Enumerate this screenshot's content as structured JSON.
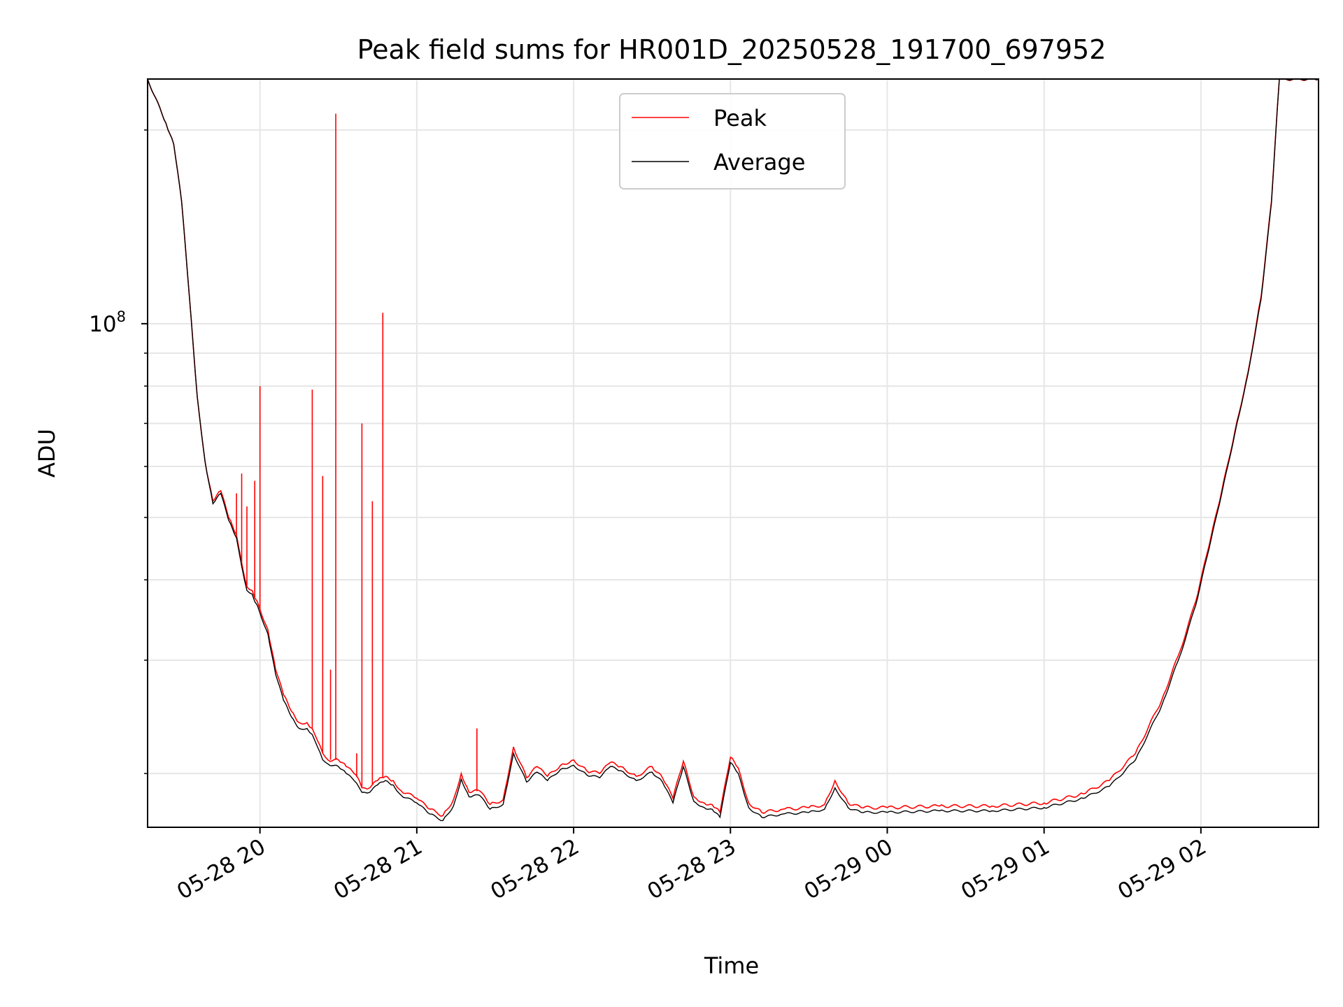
{
  "chart_data": {
    "type": "line",
    "title": "Peak field sums for HR001D_20250528_191700_697952",
    "xlabel": "Time",
    "ylabel": "ADU",
    "y_scale": "log",
    "grid": true,
    "legend_position": "top-center",
    "xlim": [
      "05-28 19:17",
      "05-29 02:45"
    ],
    "ylim": [
      16500000,
      240000000
    ],
    "x_ticks": [
      "05-28 20",
      "05-28 21",
      "05-28 22",
      "05-28 23",
      "05-29 00",
      "05-29 01",
      "05-29 02"
    ],
    "y_tick_label": {
      "base": "10",
      "exponent": "8",
      "value": 100000000
    },
    "series": [
      {
        "name": "Peak",
        "color": "#ff0000",
        "x": [
          "05-28 19:17",
          "05-28 19:24",
          "05-28 19:27",
          "05-28 19:30",
          "05-28 19:33",
          "05-28 19:36",
          "05-28 19:39",
          "05-28 19:42",
          "05-28 19:45",
          "05-28 19:48",
          "05-28 19:51",
          "05-28 19:53",
          "05-28 19:55",
          "05-28 19:57",
          "05-28 19:58",
          "05-28 19:59",
          "05-28 20:00",
          "05-28 20:03",
          "05-28 20:06",
          "05-28 20:09",
          "05-28 20:12",
          "05-28 20:15",
          "05-28 20:18",
          "05-28 20:20",
          "05-28 20:21",
          "05-28 20:22",
          "05-28 20:24",
          "05-28 20:26",
          "05-28 20:30",
          "05-28 20:33",
          "05-28 20:36",
          "05-28 20:38",
          "05-28 20:39",
          "05-28 20:40",
          "05-28 20:42",
          "05-28 20:45",
          "05-28 20:48",
          "05-28 20:51",
          "05-28 20:54",
          "05-28 21:00",
          "05-28 21:05",
          "05-28 21:10",
          "05-28 21:14",
          "05-28 21:17",
          "05-28 21:20",
          "05-28 21:24",
          "05-28 21:28",
          "05-28 21:33",
          "05-28 21:37",
          "05-28 21:42",
          "05-28 21:46",
          "05-28 21:50",
          "05-28 21:55",
          "05-28 22:00",
          "05-28 22:05",
          "05-28 22:10",
          "05-28 22:14",
          "05-28 22:18",
          "05-28 22:24",
          "05-28 22:30",
          "05-28 22:34",
          "05-28 22:38",
          "05-28 22:42",
          "05-28 22:46",
          "05-28 22:50",
          "05-28 22:53",
          "05-28 22:56",
          "05-28 23:00",
          "05-28 23:03",
          "05-28 23:07",
          "05-28 23:12",
          "05-28 23:20",
          "05-28 23:30",
          "05-28 23:36",
          "05-28 23:40",
          "05-28 23:45",
          "05-28 23:50",
          "05-29 00:00",
          "05-29 00:20",
          "05-29 00:40",
          "05-29 01:00",
          "05-29 01:15",
          "05-29 01:25",
          "05-29 01:35",
          "05-29 01:45",
          "05-29 01:52",
          "05-29 01:58",
          "05-29 02:03",
          "05-29 02:08",
          "05-29 02:13",
          "05-29 02:18",
          "05-29 02:23",
          "05-29 02:27",
          "05-29 02:30",
          "05-29 02:45"
        ],
        "y": [
          240000000,
          205000000,
          190000000,
          155000000,
          110000000,
          77000000,
          61000000,
          53000000,
          55000000,
          50000000,
          47000000,
          42500000,
          39000000,
          38500000,
          37500000,
          37000000,
          36000000,
          33500000,
          29000000,
          26500000,
          25000000,
          24000000,
          24000000,
          23500000,
          23000000,
          22500000,
          21500000,
          21000000,
          21000000,
          20500000,
          20000000,
          19500000,
          19000000,
          19000000,
          19000000,
          19500000,
          19800000,
          19500000,
          18800000,
          18300000,
          17600000,
          17200000,
          18200000,
          20000000,
          18700000,
          18800000,
          17900000,
          18200000,
          22000000,
          19700000,
          20500000,
          19800000,
          20600000,
          21000000,
          20200000,
          20000000,
          20800000,
          20500000,
          19800000,
          20500000,
          19700000,
          18300000,
          20900000,
          18400000,
          18000000,
          17900000,
          17400000,
          21200000,
          20400000,
          18000000,
          17400000,
          17600000,
          17700000,
          17900000,
          19500000,
          18000000,
          17700000,
          17700000,
          17800000,
          17800000,
          18000000,
          18600000,
          19500000,
          21500000,
          26000000,
          31000000,
          37000000,
          45000000,
          55000000,
          68000000,
          84000000,
          110000000,
          155000000,
          240000000,
          240000000
        ]
      },
      {
        "name": "Average",
        "color": "#000000",
        "x": [
          "05-28 19:17",
          "05-28 19:24",
          "05-28 19:27",
          "05-28 19:30",
          "05-28 19:33",
          "05-28 19:36",
          "05-28 19:39",
          "05-28 19:42",
          "05-28 19:45",
          "05-28 19:48",
          "05-28 19:51",
          "05-28 19:53",
          "05-28 19:55",
          "05-28 19:57",
          "05-28 19:58",
          "05-28 19:59",
          "05-28 20:00",
          "05-28 20:03",
          "05-28 20:06",
          "05-28 20:09",
          "05-28 20:12",
          "05-28 20:15",
          "05-28 20:18",
          "05-28 20:20",
          "05-28 20:21",
          "05-28 20:22",
          "05-28 20:24",
          "05-28 20:26",
          "05-28 20:30",
          "05-28 20:33",
          "05-28 20:36",
          "05-28 20:38",
          "05-28 20:39",
          "05-28 20:40",
          "05-28 20:42",
          "05-28 20:45",
          "05-28 20:48",
          "05-28 20:51",
          "05-28 20:54",
          "05-28 21:00",
          "05-28 21:05",
          "05-28 21:10",
          "05-28 21:14",
          "05-28 21:17",
          "05-28 21:20",
          "05-28 21:24",
          "05-28 21:28",
          "05-28 21:33",
          "05-28 21:37",
          "05-28 21:42",
          "05-28 21:46",
          "05-28 21:50",
          "05-28 21:55",
          "05-28 22:00",
          "05-28 22:05",
          "05-28 22:10",
          "05-28 22:14",
          "05-28 22:18",
          "05-28 22:24",
          "05-28 22:30",
          "05-28 22:34",
          "05-28 22:38",
          "05-28 22:42",
          "05-28 22:46",
          "05-28 22:50",
          "05-28 22:53",
          "05-28 22:56",
          "05-28 23:00",
          "05-28 23:03",
          "05-28 23:07",
          "05-28 23:12",
          "05-28 23:20",
          "05-28 23:30",
          "05-28 23:36",
          "05-28 23:40",
          "05-28 23:45",
          "05-28 23:50",
          "05-29 00:00",
          "05-29 00:20",
          "05-29 00:40",
          "05-29 01:00",
          "05-29 01:15",
          "05-29 01:25",
          "05-29 01:35",
          "05-29 01:45",
          "05-29 01:52",
          "05-29 01:58",
          "05-29 02:03",
          "05-29 02:08",
          "05-29 02:13",
          "05-29 02:18",
          "05-29 02:23",
          "05-29 02:27",
          "05-29 02:30",
          "05-29 02:45"
        ],
        "y": [
          240000000,
          205000000,
          190000000,
          155000000,
          110000000,
          77000000,
          61000000,
          52500000,
          54500000,
          49500000,
          46500000,
          42000000,
          38500000,
          38000000,
          37000000,
          36500000,
          35500000,
          33000000,
          28500000,
          26000000,
          24500000,
          23500000,
          23500000,
          23000000,
          22500000,
          22000000,
          21000000,
          20700000,
          20500000,
          20000000,
          19500000,
          19000000,
          18700000,
          18700000,
          18700000,
          19200000,
          19500000,
          19200000,
          18500000,
          18000000,
          17300000,
          16900000,
          17800000,
          19600000,
          18400000,
          18500000,
          17600000,
          17900000,
          21500000,
          19400000,
          20100000,
          19500000,
          20300000,
          20600000,
          19900000,
          19700000,
          20500000,
          20200000,
          19500000,
          20100000,
          19400000,
          18000000,
          20500000,
          18100000,
          17700000,
          17600000,
          17100000,
          20800000,
          20000000,
          17700000,
          17100000,
          17300000,
          17400000,
          17600000,
          19000000,
          17700000,
          17400000,
          17400000,
          17500000,
          17500000,
          17700000,
          18300000,
          19100000,
          21000000,
          25500000,
          30500000,
          36500000,
          44500000,
          54500000,
          67500000,
          83500000,
          109000000,
          154000000,
          240000000,
          240000000
        ]
      }
    ],
    "peak_spikes": [
      {
        "x": "05-28 19:51",
        "y": 54500000
      },
      {
        "x": "05-28 19:53",
        "y": 58500000
      },
      {
        "x": "05-28 19:55",
        "y": 52000000
      },
      {
        "x": "05-28 19:58",
        "y": 57000000
      },
      {
        "x": "05-28 20:00",
        "y": 80000000
      },
      {
        "x": "05-28 20:20",
        "y": 79000000
      },
      {
        "x": "05-28 20:24",
        "y": 58000000
      },
      {
        "x": "05-28 20:27",
        "y": 29000000
      },
      {
        "x": "05-28 20:29",
        "y": 212000000
      },
      {
        "x": "05-28 20:37",
        "y": 21500000
      },
      {
        "x": "05-28 20:39",
        "y": 70000000
      },
      {
        "x": "05-28 20:43",
        "y": 53000000
      },
      {
        "x": "05-28 20:47",
        "y": 104000000
      },
      {
        "x": "05-28 21:23",
        "y": 23500000
      }
    ]
  }
}
